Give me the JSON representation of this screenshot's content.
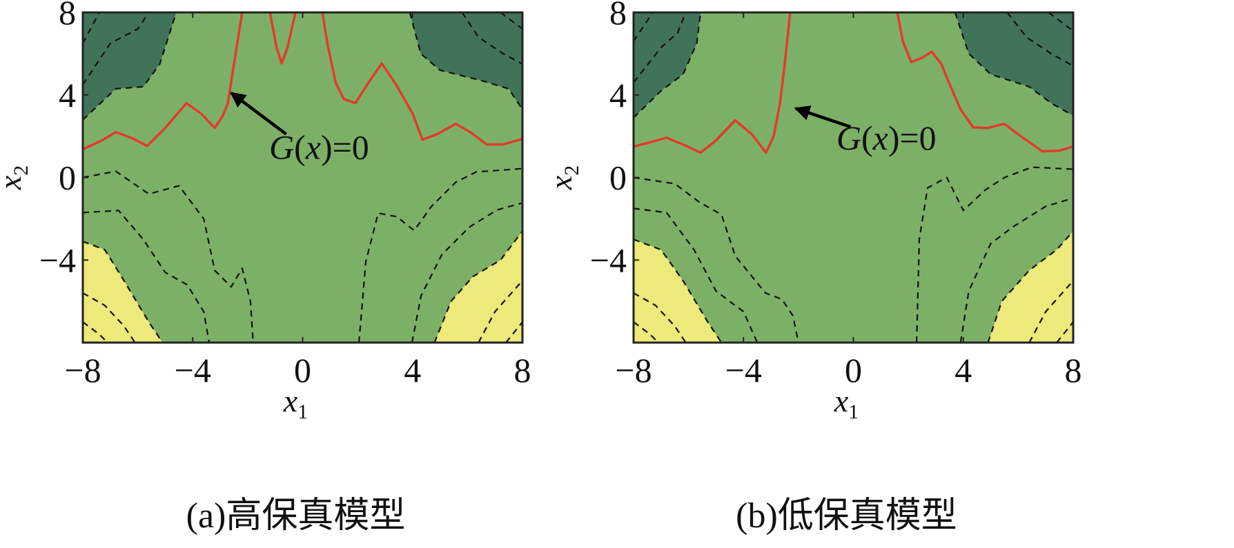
{
  "colors": {
    "dark": "#41735a",
    "mid": "#7db067",
    "yellow": "#ede97a",
    "red": "#e23a2c",
    "dash": "#111111"
  },
  "chart_data": [
    {
      "type": "contour",
      "caption": "(a)高保真模型",
      "xlabel": "x",
      "xlabel_sub": "1",
      "ylabel": "x",
      "ylabel_sub": "2",
      "xlim": [
        -8,
        8
      ],
      "ylim": [
        -8,
        8
      ],
      "xticks": [
        "−8",
        "−4",
        "0",
        "4",
        "8"
      ],
      "xtick_values": [
        -8,
        -4,
        0,
        4,
        8
      ],
      "yticks": [
        "8",
        "4",
        "0",
        "−4"
      ],
      "ytick_values": [
        8,
        4,
        0,
        -4
      ],
      "annotation": {
        "text_main": "G",
        "text_var": "x",
        "text_rest": "=0",
        "arrow_from": [
          -0.6,
          2.1
        ],
        "arrow_to": [
          -2.6,
          4.1
        ],
        "text_at": [
          0.6,
          0.9
        ]
      },
      "limit_state": [
        [
          [
            -8,
            1.37
          ],
          [
            -7.3,
            1.8
          ],
          [
            -6.8,
            2.2
          ],
          [
            -6.2,
            1.9
          ],
          [
            -5.66,
            1.53
          ],
          [
            -5,
            2.4
          ],
          [
            -4.23,
            3.6
          ],
          [
            -3.7,
            3.1
          ],
          [
            -3.2,
            2.4
          ],
          [
            -2.9,
            3.0
          ],
          [
            -2.72,
            3.6
          ],
          [
            -2.5,
            5.5
          ],
          [
            -2.2,
            8
          ]
        ],
        [
          [
            -1.19,
            8
          ],
          [
            -0.95,
            6.3
          ],
          [
            -0.76,
            5.53
          ],
          [
            -0.55,
            6.3
          ],
          [
            -0.26,
            8
          ]
        ],
        [
          [
            0.72,
            8
          ],
          [
            0.9,
            6.5
          ],
          [
            1.2,
            4.6
          ],
          [
            1.5,
            3.8
          ],
          [
            1.92,
            3.6
          ],
          [
            2.4,
            4.6
          ],
          [
            2.88,
            5.53
          ],
          [
            3.4,
            4.5
          ],
          [
            4.0,
            3.1
          ],
          [
            4.36,
            1.83
          ],
          [
            4.9,
            2.1
          ],
          [
            5.57,
            2.6
          ],
          [
            6.1,
            2.2
          ],
          [
            6.7,
            1.6
          ],
          [
            7.3,
            1.6
          ],
          [
            8,
            1.87
          ]
        ]
      ],
      "regions": [
        {
          "level": "high",
          "boundary": [
            [
              -8,
              2.8
            ],
            [
              -6.8,
              4.3
            ],
            [
              -5.8,
              4.4
            ],
            [
              -5.2,
              5.5
            ],
            [
              -4.6,
              8
            ]
          ],
          "corner": [
            -8,
            8
          ]
        },
        {
          "level": "high",
          "boundary": [
            [
              3.9,
              8
            ],
            [
              4.3,
              6
            ],
            [
              5,
              5.2
            ],
            [
              6.5,
              4.7
            ],
            [
              7.5,
              4.3
            ],
            [
              8,
              3.3
            ]
          ],
          "corner": [
            8,
            8
          ]
        },
        {
          "level": "low",
          "boundary": [
            [
              -8,
              -3.1
            ],
            [
              -7.2,
              -3.5
            ],
            [
              -6.5,
              -5
            ],
            [
              -5.6,
              -7
            ],
            [
              -5.1,
              -8
            ]
          ],
          "corner": [
            -8,
            -8
          ]
        },
        {
          "level": "low",
          "boundary": [
            [
              4.8,
              -8
            ],
            [
              5.4,
              -6
            ],
            [
              6.2,
              -4.8
            ],
            [
              7.2,
              -4
            ],
            [
              8,
              -2.6
            ]
          ],
          "corner": [
            8,
            -8
          ]
        }
      ],
      "contours": [
        [
          [
            -8,
            4.5
          ],
          [
            -7,
            6.5
          ],
          [
            -6,
            7.2
          ],
          [
            -5.6,
            8
          ]
        ],
        [
          [
            -8,
            6.5
          ],
          [
            -7.4,
            8
          ]
        ],
        [
          [
            5.8,
            8
          ],
          [
            6.4,
            6.8
          ],
          [
            7.3,
            6
          ],
          [
            8,
            5.5
          ]
        ],
        [
          [
            7.2,
            8
          ],
          [
            8,
            7.2
          ]
        ],
        [
          [
            -8,
            0
          ],
          [
            -6.8,
            0.3
          ],
          [
            -5.6,
            -0.8
          ],
          [
            -4.5,
            -0.4
          ],
          [
            -3.6,
            -2
          ],
          [
            -3.2,
            -4.5
          ],
          [
            -2.6,
            -5.3
          ],
          [
            -2.2,
            -4.4
          ],
          [
            -1.9,
            -6
          ],
          [
            -1.8,
            -8
          ]
        ],
        [
          [
            -8,
            -1.7
          ],
          [
            -6.7,
            -1.6
          ],
          [
            -5.8,
            -3
          ],
          [
            -5,
            -4.6
          ],
          [
            -4.2,
            -5.2
          ],
          [
            -3.6,
            -6.5
          ],
          [
            -3.4,
            -8
          ]
        ],
        [
          [
            -8,
            -5.6
          ],
          [
            -7.2,
            -6.2
          ],
          [
            -6.5,
            -7.2
          ],
          [
            -6.1,
            -8
          ]
        ],
        [
          [
            -8,
            -7
          ],
          [
            -7.4,
            -7.6
          ],
          [
            -7.1,
            -8
          ]
        ],
        [
          [
            2.05,
            -8
          ],
          [
            2.3,
            -4.07
          ],
          [
            2.75,
            -1.73
          ],
          [
            3.43,
            -1.9
          ],
          [
            4.06,
            -2.57
          ],
          [
            4.69,
            -1.4
          ],
          [
            5.57,
            -0.23
          ],
          [
            6.32,
            0.27
          ],
          [
            8,
            0.43
          ]
        ],
        [
          [
            3.98,
            -8
          ],
          [
            4.31,
            -5.73
          ],
          [
            5.07,
            -3.73
          ],
          [
            6.07,
            -2.4
          ],
          [
            7.08,
            -1.57
          ],
          [
            8,
            -1.23
          ]
        ],
        [
          [
            6.4,
            -8
          ],
          [
            7,
            -6.5
          ],
          [
            8,
            -5
          ]
        ],
        [
          [
            7.4,
            -8
          ],
          [
            8,
            -7
          ]
        ]
      ]
    },
    {
      "type": "contour",
      "caption": "(b)低保真模型",
      "xlabel": "x",
      "xlabel_sub": "1",
      "ylabel": "x",
      "ylabel_sub": "2",
      "xlim": [
        -8,
        8
      ],
      "ylim": [
        -8,
        8
      ],
      "xticks": [
        "−8",
        "−4",
        "0",
        "4",
        "8"
      ],
      "xtick_values": [
        -8,
        -4,
        0,
        4,
        8
      ],
      "yticks": [
        "8",
        "4",
        "0",
        "−4"
      ],
      "ytick_values": [
        8,
        4,
        0,
        -4
      ],
      "annotation": {
        "text_main": "G",
        "text_var": "x",
        "text_rest": "=0",
        "arrow_from": [
          -0.1,
          2.45
        ],
        "arrow_to": [
          -2.1,
          3.35
        ],
        "text_at": [
          1.2,
          1.35
        ]
      },
      "limit_state": [
        [
          [
            -8,
            1.5
          ],
          [
            -7.4,
            1.7
          ],
          [
            -6.8,
            1.93
          ],
          [
            -6.2,
            1.6
          ],
          [
            -5.56,
            1.2
          ],
          [
            -5,
            1.8
          ],
          [
            -4.3,
            2.77
          ],
          [
            -3.7,
            2.1
          ],
          [
            -3.18,
            1.2
          ],
          [
            -2.9,
            2.0
          ],
          [
            -2.67,
            3.6
          ],
          [
            -2.5,
            5.5
          ],
          [
            -2.3,
            8
          ]
        ],
        [
          [
            1.6,
            8
          ],
          [
            1.8,
            6.6
          ],
          [
            2.1,
            5.6
          ],
          [
            2.5,
            5.8
          ],
          [
            2.85,
            6.1
          ],
          [
            3.2,
            5.5
          ],
          [
            3.48,
            4.6
          ],
          [
            3.9,
            3.3
          ],
          [
            4.36,
            2.43
          ],
          [
            4.9,
            2.4
          ],
          [
            5.49,
            2.6
          ],
          [
            6.2,
            1.9
          ],
          [
            6.87,
            1.27
          ],
          [
            7.5,
            1.3
          ],
          [
            8,
            1.5
          ]
        ]
      ],
      "regions": [
        {
          "level": "high",
          "boundary": [
            [
              -8,
              2.9
            ],
            [
              -7,
              4.2
            ],
            [
              -6.2,
              5
            ],
            [
              -5.7,
              6.5
            ],
            [
              -5.56,
              8
            ]
          ],
          "corner": [
            -8,
            8
          ]
        },
        {
          "level": "high",
          "boundary": [
            [
              3.7,
              8
            ],
            [
              4.2,
              6
            ],
            [
              5,
              5
            ],
            [
              6.4,
              4.4
            ],
            [
              7.2,
              3.6
            ],
            [
              8,
              3
            ]
          ],
          "corner": [
            8,
            8
          ]
        },
        {
          "level": "low",
          "boundary": [
            [
              -8,
              -3
            ],
            [
              -7,
              -3.5
            ],
            [
              -6.2,
              -5
            ],
            [
              -5.3,
              -7
            ],
            [
              -4.8,
              -8
            ]
          ],
          "corner": [
            -8,
            -8
          ]
        },
        {
          "level": "low",
          "boundary": [
            [
              4.9,
              -8
            ],
            [
              5.4,
              -6
            ],
            [
              6.4,
              -4.5
            ],
            [
              7.4,
              -3.5
            ],
            [
              8,
              -2.6
            ]
          ],
          "corner": [
            8,
            -8
          ]
        }
      ],
      "contours": [
        [
          [
            -8,
            4.6
          ],
          [
            -7,
            6.3
          ],
          [
            -6.4,
            7
          ],
          [
            -6.1,
            8
          ]
        ],
        [
          [
            -8,
            6.6
          ],
          [
            -7.3,
            8
          ]
        ],
        [
          [
            5.6,
            8
          ],
          [
            6.3,
            6.8
          ],
          [
            7.2,
            6
          ],
          [
            8,
            5.4
          ]
        ],
        [
          [
            7.1,
            8
          ],
          [
            8,
            7.1
          ]
        ],
        [
          [
            -8,
            0
          ],
          [
            -6.5,
            -0.3
          ],
          [
            -5.6,
            -1.2
          ],
          [
            -4.8,
            -1.8
          ],
          [
            -4.3,
            -3.8
          ],
          [
            -3.2,
            -5.6
          ],
          [
            -2.6,
            -5.9
          ],
          [
            -2.2,
            -6.7
          ],
          [
            -2,
            -8
          ]
        ],
        [
          [
            -8,
            -1.5
          ],
          [
            -6.8,
            -1.7
          ],
          [
            -5.8,
            -3.5
          ],
          [
            -5,
            -5.5
          ],
          [
            -4,
            -6.5
          ],
          [
            -3.5,
            -8
          ]
        ],
        [
          [
            -8,
            -5.6
          ],
          [
            -7.2,
            -6.2
          ],
          [
            -6.5,
            -7.2
          ],
          [
            -6.1,
            -8
          ]
        ],
        [
          [
            -8,
            -7
          ],
          [
            -7.4,
            -7.6
          ],
          [
            -7.1,
            -8
          ]
        ],
        [
          [
            2.3,
            -8
          ],
          [
            2.4,
            -3
          ],
          [
            2.7,
            -0.5
          ],
          [
            3.4,
            0
          ],
          [
            4,
            -1.6
          ],
          [
            4.8,
            -0.6
          ],
          [
            5.5,
            0
          ],
          [
            6.5,
            0.5
          ],
          [
            8,
            0.4
          ]
        ],
        [
          [
            3.9,
            -8
          ],
          [
            4.2,
            -5.5
          ],
          [
            5,
            -3.2
          ],
          [
            5.8,
            -2.4
          ],
          [
            7,
            -1.4
          ],
          [
            8,
            -1
          ]
        ],
        [
          [
            6.4,
            -8
          ],
          [
            7,
            -6.5
          ],
          [
            8,
            -5
          ]
        ],
        [
          [
            7.4,
            -8
          ],
          [
            8,
            -7
          ]
        ]
      ]
    }
  ]
}
